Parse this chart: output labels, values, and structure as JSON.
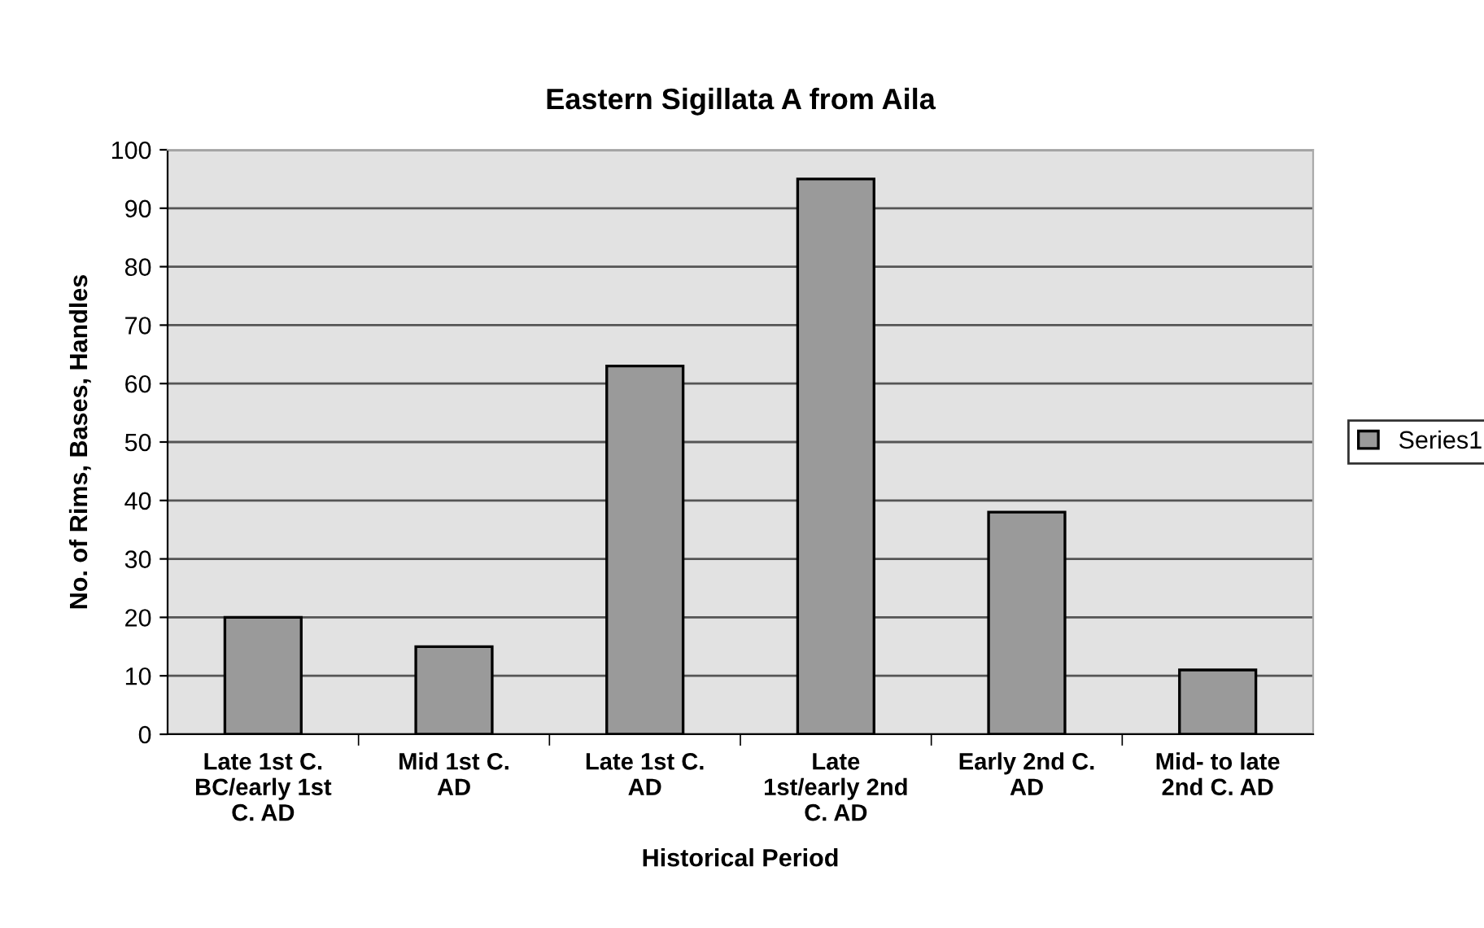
{
  "chart_data": {
    "type": "bar",
    "title": "Eastern Sigillata A from Aila",
    "xlabel": "Historical Period",
    "ylabel": "No. of Rims, Bases, Handles",
    "categories": [
      "Late 1st C.\nBC/early 1st\nC. AD",
      "Mid 1st C.\nAD",
      "Late 1st C.\nAD",
      "Late\n1st/early 2nd\nC. AD",
      "Early 2nd C.\nAD",
      "Mid- to late\n2nd C. AD"
    ],
    "series": [
      {
        "name": "Series1",
        "color": "#9a9a9a",
        "values": [
          20,
          15,
          63,
          95,
          38,
          11
        ]
      }
    ],
    "ylim": [
      0,
      100
    ],
    "yticks": [
      0,
      10,
      20,
      30,
      40,
      50,
      60,
      70,
      80,
      90,
      100
    ],
    "grid": "y",
    "legend": "right"
  }
}
